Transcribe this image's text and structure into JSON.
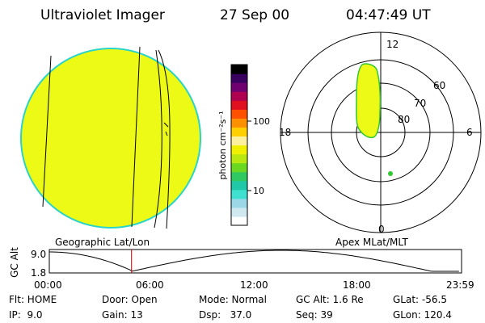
{
  "header": {
    "instrument": "Ultraviolet Imager",
    "date": "27 Sep 00",
    "time": "04:47:49 UT"
  },
  "colorbar": {
    "unit_label": "photon cm⁻²s⁻¹",
    "ticks": [
      "100",
      "10"
    ],
    "colors": [
      "#ffffff",
      "#d0e8f0",
      "#9ad8e8",
      "#40e0d0",
      "#20c8a8",
      "#30c860",
      "#6ad820",
      "#b8e810",
      "#f0f000",
      "#fff0a0",
      "#ffd000",
      "#ff9000",
      "#ff5000",
      "#e01020",
      "#b00050",
      "#700070",
      "#3a0060",
      "#000000"
    ]
  },
  "polar": {
    "mlt_labels": [
      "12",
      "18",
      "6",
      "0"
    ],
    "mlat_labels": [
      "60",
      "70",
      "80"
    ]
  },
  "captions": {
    "left": "Geographic Lat/Lon",
    "right": "Apex MLat/MLT"
  },
  "altitude_plot": {
    "ylabel": "GC Alt",
    "ytick_top": "9.0",
    "ytick_bottom": "1.8",
    "xticks": [
      "00:00",
      "06:00",
      "12:00",
      "18:00",
      "23:59"
    ],
    "marker_time": "04:47",
    "marker_color": "#cc0000",
    "curve_color": "#000000"
  },
  "info": {
    "rows": [
      [
        "Flt: HOME",
        "Door: Open",
        "Mode: Normal",
        "GC Alt: 1.6 Re",
        "GLat: -56.5"
      ],
      [
        "IP:  9.0",
        "Gain: 13",
        "Dsp:   37.0",
        "Seq: 39",
        "GLon: 120.4"
      ]
    ]
  },
  "colors": {
    "disk_fill": "#ecfa16",
    "disk_edge": "#2bd4c8",
    "aurora_fill": "#ecfa16",
    "aurora_edge": "#31c832"
  }
}
